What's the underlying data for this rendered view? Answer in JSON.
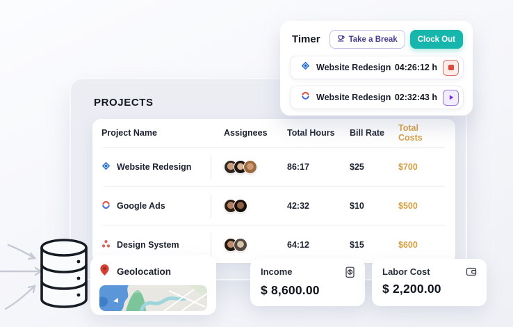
{
  "timer_card": {
    "title": "Timer",
    "take_break_label": "Take a Break",
    "clock_out_label": "Clock Out",
    "entries": [
      {
        "project": "Website Redesign",
        "time": "04:26:12 h",
        "icon": "diamond-icon",
        "action": "stop"
      },
      {
        "project": "Website Redesign",
        "time": "02:32:43 h",
        "icon": "sync-chevrons-icon",
        "action": "play"
      }
    ]
  },
  "projects_panel": {
    "title": "PROJECTS",
    "columns": [
      "Project Name",
      "Assignees",
      "Total Hours",
      "Bill Rate",
      "Total Costs"
    ],
    "rows": [
      {
        "name": "Website Redesign",
        "icon": "diamond-icon",
        "assignees_count": 3,
        "total_hours": "86:17",
        "bill_rate": "$25",
        "total_costs": "$700"
      },
      {
        "name": "Google Ads",
        "icon": "sync-chevrons-icon",
        "assignees_count": 2,
        "total_hours": "42:32",
        "bill_rate": "$10",
        "total_costs": "$500"
      },
      {
        "name": "Design System",
        "icon": "three-dots-icon",
        "assignees_count": 2,
        "total_hours": "64:12",
        "bill_rate": "$15",
        "total_costs": "$600"
      }
    ]
  },
  "geolocation_card": {
    "title": "Geolocation"
  },
  "income_card": {
    "label": "Income",
    "amount": "$ 8,600.00"
  },
  "labor_cost_card": {
    "label": "Labor Cost",
    "amount": "$ 2,200.00"
  },
  "colors": {
    "teal_accent": "#17b6ad",
    "cost_gold": "#d59e41",
    "purple_accent": "#443d8d",
    "stop_red": "#e0473d",
    "play_purple": "#6f33d6",
    "project_blue": "#2065c8",
    "coral": "#d8685c",
    "pin_red": "#d63f35"
  }
}
